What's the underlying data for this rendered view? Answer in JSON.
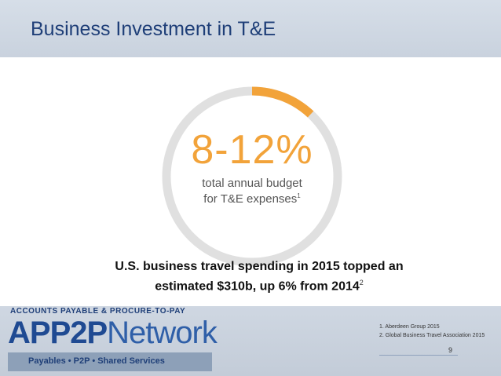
{
  "header": {
    "title": "Business Investment in T&E"
  },
  "stat": {
    "value": "8-12%",
    "line1": "total annual budget",
    "line2": "for T&E expenses",
    "footnote_mark": "1",
    "arc_fraction": 0.12,
    "ring_color": "#e0e0e0",
    "accent_color": "#f2a33a"
  },
  "statement": {
    "line1": "U.S. business travel spending in 2015 topped an",
    "line2": "estimated $310b, up 6% from 2014",
    "footnote_mark": "2"
  },
  "logo": {
    "tagline": "ACCOUNTS PAYABLE & PROCURE-TO-PAY",
    "name_bold": "APP2P",
    "name_light": "Network",
    "bar_text": "Payables  •  P2P  •  Shared Services"
  },
  "footnotes": [
    "1. Aberdeen Group 2015",
    "2. Global Business Travel Association 2015"
  ],
  "page_number": "9"
}
